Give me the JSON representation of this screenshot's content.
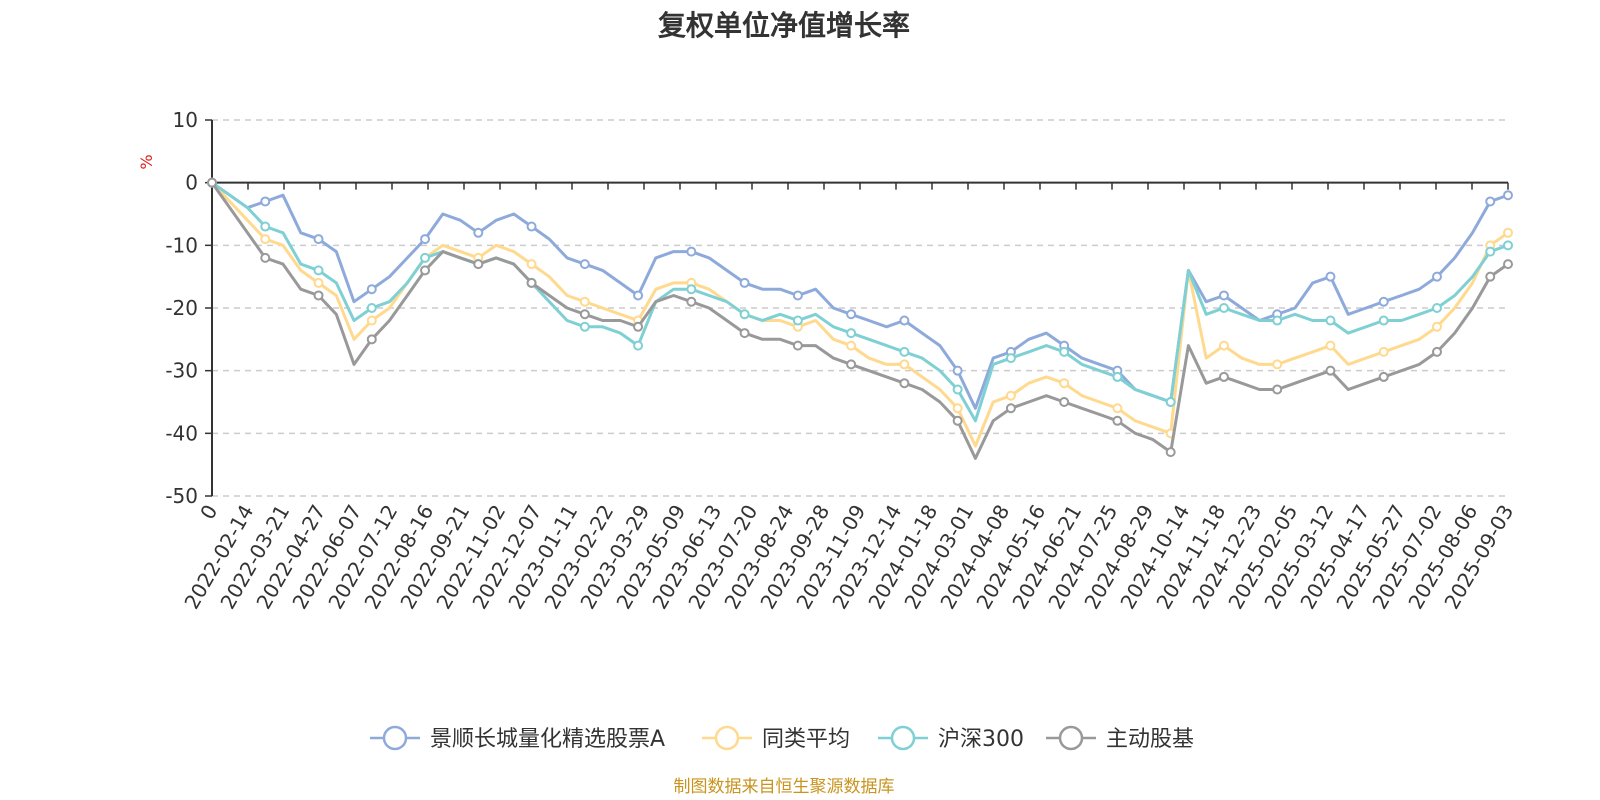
{
  "chart_data": {
    "type": "line",
    "title": "复权单位净值增长率",
    "ylabel": "%",
    "ylim": [
      -50,
      10
    ],
    "yticks": [
      "10",
      "0",
      "-10",
      "-20",
      "-30",
      "-40",
      "-50"
    ],
    "x_start_label": "0",
    "x_tick_labels": [
      "2022-02-14",
      "2022-03-21",
      "2022-04-27",
      "2022-06-07",
      "2022-07-12",
      "2022-08-16",
      "2022-09-21",
      "2022-11-02",
      "2022-12-07",
      "2023-01-11",
      "2023-02-22",
      "2023-03-29",
      "2023-05-09",
      "2023-06-13",
      "2023-07-20",
      "2023-08-24",
      "2023-09-28",
      "2023-11-09",
      "2023-12-14",
      "2024-01-18",
      "2024-03-01",
      "2024-04-08",
      "2024-05-16",
      "2024-06-21",
      "2024-07-25",
      "2024-08-29",
      "2024-10-14",
      "2024-11-18",
      "2024-12-23",
      "2025-02-05",
      "2025-03-12",
      "2025-04-17",
      "2025-05-27",
      "2025-07-02",
      "2025-08-06",
      "2025-09-03"
    ],
    "grid": true,
    "legend_position": "bottom",
    "source_note": "制图数据来自恒生聚源数据库",
    "series": [
      {
        "name": "景顺长城量化精选股票A",
        "color": "#8eaadb",
        "values": [
          0,
          -2,
          -4,
          -3,
          -2,
          -8,
          -9,
          -11,
          -19,
          -17,
          -15,
          -12,
          -9,
          -5,
          -6,
          -8,
          -6,
          -5,
          -7,
          -9,
          -12,
          -13,
          -14,
          -16,
          -18,
          -12,
          -11,
          -11,
          -12,
          -14,
          -16,
          -17,
          -17,
          -18,
          -17,
          -20,
          -21,
          -22,
          -23,
          -22,
          -24,
          -26,
          -30,
          -36,
          -28,
          -27,
          -25,
          -24,
          -26,
          -28,
          -29,
          -30,
          -33,
          -34,
          -35,
          -14,
          -19,
          -18,
          -20,
          -22,
          -21,
          -20,
          -16,
          -15,
          -21,
          -20,
          -19,
          -18,
          -17,
          -15,
          -12,
          -8,
          -3,
          -2
        ]
      },
      {
        "name": "同类平均",
        "color": "#ffd98e",
        "values": [
          0,
          -3,
          -6,
          -9,
          -10,
          -14,
          -16,
          -18,
          -25,
          -22,
          -20,
          -16,
          -12,
          -10,
          -11,
          -12,
          -10,
          -11,
          -13,
          -15,
          -18,
          -19,
          -20,
          -21,
          -22,
          -17,
          -16,
          -16,
          -17,
          -19,
          -21,
          -22,
          -22,
          -23,
          -22,
          -25,
          -26,
          -28,
          -29,
          -29,
          -31,
          -33,
          -36,
          -42,
          -35,
          -34,
          -32,
          -31,
          -32,
          -34,
          -35,
          -36,
          -38,
          -39,
          -40,
          -14,
          -28,
          -26,
          -28,
          -29,
          -29,
          -28,
          -27,
          -26,
          -29,
          -28,
          -27,
          -26,
          -25,
          -23,
          -20,
          -16,
          -10,
          -8
        ]
      },
      {
        "name": "沪深300",
        "color": "#7fd0d4",
        "values": [
          0,
          -2,
          -4,
          -7,
          -8,
          -13,
          -14,
          -16,
          -22,
          -20,
          -19,
          -16,
          -12,
          -11,
          -12,
          -13,
          -12,
          -13,
          -16,
          -19,
          -22,
          -23,
          -23,
          -24,
          -26,
          -19,
          -17,
          -17,
          -18,
          -19,
          -21,
          -22,
          -21,
          -22,
          -21,
          -23,
          -24,
          -25,
          -26,
          -27,
          -28,
          -30,
          -33,
          -38,
          -29,
          -28,
          -27,
          -26,
          -27,
          -29,
          -30,
          -31,
          -33,
          -34,
          -35,
          -14,
          -21,
          -20,
          -21,
          -22,
          -22,
          -21,
          -22,
          -22,
          -24,
          -23,
          -22,
          -22,
          -21,
          -20,
          -18,
          -15,
          -11,
          -10
        ]
      },
      {
        "name": "主动股基",
        "color": "#999999",
        "values": [
          0,
          -4,
          -8,
          -12,
          -13,
          -17,
          -18,
          -21,
          -29,
          -25,
          -22,
          -18,
          -14,
          -11,
          -12,
          -13,
          -12,
          -13,
          -16,
          -18,
          -20,
          -21,
          -22,
          -22,
          -23,
          -19,
          -18,
          -19,
          -20,
          -22,
          -24,
          -25,
          -25,
          -26,
          -26,
          -28,
          -29,
          -30,
          -31,
          -32,
          -33,
          -35,
          -38,
          -44,
          -38,
          -36,
          -35,
          -34,
          -35,
          -36,
          -37,
          -38,
          -40,
          -41,
          -43,
          -26,
          -32,
          -31,
          -32,
          -33,
          -33,
          -32,
          -31,
          -30,
          -33,
          -32,
          -31,
          -30,
          -29,
          -27,
          -24,
          -20,
          -15,
          -13
        ]
      }
    ]
  }
}
